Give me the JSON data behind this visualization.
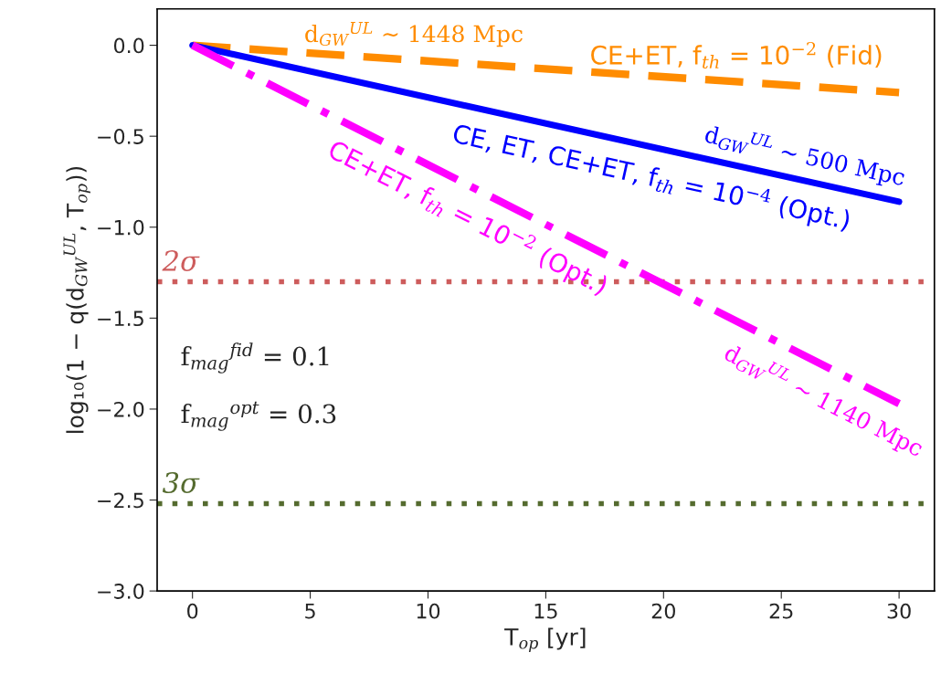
{
  "chart_data": {
    "type": "line",
    "xlabel": "T$_{op}$ [yr]",
    "ylabel": "log₁₀(1 − q(d$_{GW}$$^{UL}$, T$_{op}$))",
    "xlim": [
      -1.5,
      31.5
    ],
    "ylim": [
      -3.0,
      0.2
    ],
    "xticks": [
      0,
      5,
      10,
      15,
      20,
      25,
      30
    ],
    "yticks": [
      {
        "value": 0.0,
        "label": "0.0"
      },
      {
        "value": -0.5,
        "label": "−0.5"
      },
      {
        "value": -1.0,
        "label": "−1.0"
      },
      {
        "value": -1.5,
        "label": "−1.5"
      },
      {
        "value": -2.0,
        "label": "−2.0"
      },
      {
        "value": -2.5,
        "label": "−2.5"
      },
      {
        "value": -3.0,
        "label": "−3.0"
      }
    ],
    "grid": false,
    "x": [
      0,
      30
    ],
    "series": [
      {
        "name": "CE+ET, f$_{th}$ = 10$^{−2}$ (Fid)",
        "color": "#ff8c00",
        "values": [
          0,
          -0.26
        ],
        "line_style": "dashed"
      },
      {
        "name": "CE, ET, CE+ET, f$_{th}$ = 10$^{−4}$ (Opt.)",
        "color": "#0000ff",
        "values": [
          0,
          -0.86
        ],
        "line_style": "solid"
      },
      {
        "name": "CE+ET, f$_{th}$ = 10$^{−2}$ (Opt.)",
        "color": "#ff00ff",
        "values": [
          0,
          -1.97
        ],
        "line_style": "dashdot"
      }
    ],
    "ref_lines": [
      {
        "axis": "y",
        "value": -1.3,
        "label": "2σ",
        "color": "#cd5c5c",
        "line_style": "dotted"
      },
      {
        "axis": "y",
        "value": -2.52,
        "label": "3σ",
        "color": "#556b2f",
        "line_style": "dotted"
      }
    ],
    "annotations": [
      {
        "text": "d$_{GW}$$^{UL}$ ∼ 1448 Mpc",
        "x": 9.4,
        "y": -0.08
      },
      {
        "text": "d$_{GW}$$^{UL}$ ∼ 500 Mpc",
        "x": 26,
        "y": -0.75
      },
      {
        "text": "d$_{GW}$$^{UL}$ ∼ 1140 Mpc",
        "x": 26.8,
        "y": -1.76
      },
      "f$_{mag}$$^{fid}$ = 0.1",
      "f$_{mag}$$^{opt}$ = 0.3"
    ]
  }
}
